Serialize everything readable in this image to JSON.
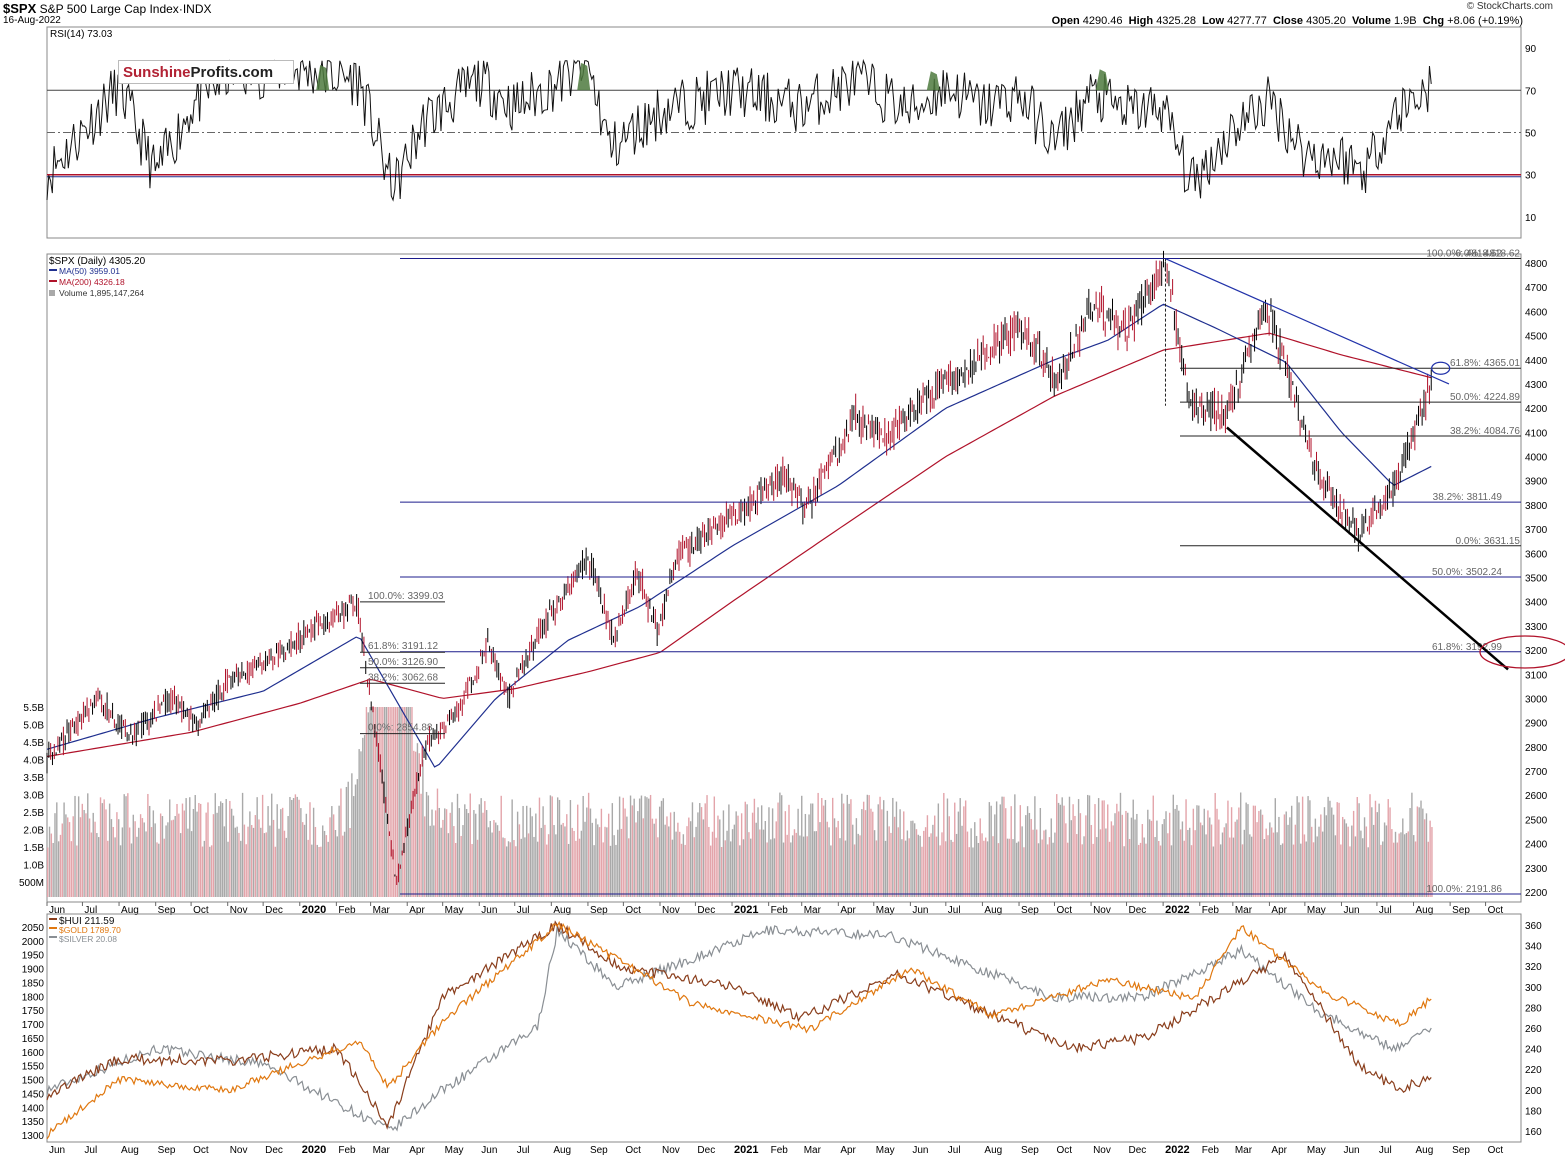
{
  "header": {
    "symbol": "$SPX",
    "name": "S&P 500 Large Cap Index",
    "exchange": "INDX",
    "date": "16-Aug-2022",
    "copyright": "© StockCharts.com",
    "open_label": "Open",
    "open": "4290.46",
    "high_label": "High",
    "high": "4325.28",
    "low_label": "Low",
    "low": "4277.77",
    "close_label": "Close",
    "close": "4305.20",
    "volume_label": "Volume",
    "volume": "1.9B",
    "chg_label": "Chg",
    "chg": "+8.06 (+0.19%)"
  },
  "logo": {
    "part1": "Sunshine",
    "part2": "Profits.com"
  },
  "colors": {
    "price": "#000000",
    "down_candle": "#b0122a",
    "ma50": "#1f2f8f",
    "ma200": "#b0122a",
    "volume_up": "#a9a9a9",
    "volume_down": "#e3a4aa",
    "fib_line": "#1c1c8c",
    "hui": "#8a3e1c",
    "gold": "#e07810",
    "silver": "#8a8f94",
    "rsi_fill": "#4d7a3e",
    "ellipse": "#b0122a"
  },
  "chart_data": [
    {
      "type": "line",
      "panel": "rsi",
      "legend": "RSI(14) 73.03",
      "ylim": [
        0,
        100
      ],
      "yticks": [
        10,
        30,
        50,
        70,
        90
      ],
      "reference_lines": [
        30,
        50,
        70
      ],
      "series": [
        {
          "name": "RSI(14)",
          "x": [
            "2019-06-01",
            "2019-08-01",
            "2019-09-01",
            "2019-10-01",
            "2019-11-01",
            "2020-01-01",
            "2020-02-20",
            "2020-03-20",
            "2020-04-15",
            "2020-06-01",
            "2020-07-01",
            "2020-09-01",
            "2020-09-20",
            "2020-11-01",
            "2021-01-01",
            "2021-03-01",
            "2021-04-15",
            "2021-06-01",
            "2021-07-01",
            "2021-08-01",
            "2021-09-01",
            "2021-10-01",
            "2021-11-01",
            "2021-12-01",
            "2022-01-01",
            "2022-01-25",
            "2022-03-01",
            "2022-04-01",
            "2022-05-01",
            "2022-06-01",
            "2022-06-20",
            "2022-07-15",
            "2022-08-16"
          ],
          "values": [
            30,
            72,
            30,
            62,
            78,
            80,
            75,
            22,
            55,
            75,
            62,
            82,
            42,
            60,
            70,
            62,
            75,
            60,
            72,
            62,
            68,
            45,
            68,
            60,
            62,
            25,
            52,
            65,
            40,
            38,
            32,
            58,
            73
          ]
        }
      ]
    },
    {
      "type": "line",
      "panel": "price",
      "title": "S&P 500 Large Cap Index",
      "ylim": [
        2200,
        4800
      ],
      "yticks": [
        2200,
        2300,
        2400,
        2500,
        2600,
        2700,
        2800,
        2900,
        3000,
        3100,
        3200,
        3300,
        3400,
        3500,
        3600,
        3700,
        3800,
        3900,
        4000,
        4100,
        4200,
        4300,
        4400,
        4500,
        4600,
        4700,
        4800
      ],
      "xticks": [
        "Jun",
        "Jul",
        "Aug",
        "Sep",
        "Oct",
        "Nov",
        "Dec",
        "2020",
        "Feb",
        "Mar",
        "Apr",
        "May",
        "Jun",
        "Jul",
        "Aug",
        "Sep",
        "Oct",
        "Nov",
        "Dec",
        "2021",
        "Feb",
        "Mar",
        "Apr",
        "May",
        "Jun",
        "Jul",
        "Aug",
        "Sep",
        "Oct",
        "Nov",
        "Dec",
        "2022",
        "Feb",
        "Mar",
        "Apr",
        "May",
        "Jun",
        "Jul",
        "Aug",
        "Sep",
        "Oct"
      ],
      "legend": [
        "$SPX (Daily) 4305.20",
        "MA(50) 3959.01",
        "MA(200) 4326.18",
        "Volume 1,895,147,264"
      ],
      "series": [
        {
          "name": "$SPX (Daily)",
          "x": [
            "2019-06-01",
            "2019-07-15",
            "2019-08-10",
            "2019-09-15",
            "2019-10-05",
            "2019-11-01",
            "2019-12-01",
            "2020-01-01",
            "2020-02-19",
            "2020-03-23",
            "2020-04-15",
            "2020-05-15",
            "2020-06-08",
            "2020-06-26",
            "2020-07-20",
            "2020-09-02",
            "2020-09-23",
            "2020-10-12",
            "2020-10-30",
            "2020-11-15",
            "2020-12-15",
            "2021-01-15",
            "2021-02-15",
            "2021-03-04",
            "2021-04-15",
            "2021-05-12",
            "2021-06-15",
            "2021-07-15",
            "2021-08-15",
            "2021-09-02",
            "2021-10-04",
            "2021-11-02",
            "2021-12-01",
            "2022-01-03",
            "2022-01-24",
            "2022-02-24",
            "2022-03-29",
            "2022-05-12",
            "2022-06-16",
            "2022-07-15",
            "2022-08-16"
          ],
          "values": [
            2750,
            3010,
            2840,
            3000,
            2890,
            3070,
            3150,
            3250,
            3393,
            2237,
            2800,
            2950,
            3230,
            3010,
            3260,
            3580,
            3240,
            3530,
            3270,
            3580,
            3700,
            3800,
            3930,
            3770,
            4170,
            4060,
            4250,
            4350,
            4470,
            4540,
            4300,
            4630,
            4510,
            4800,
            4220,
            4190,
            4630,
            3930,
            3670,
            3860,
            4305
          ]
        },
        {
          "name": "MA(50)",
          "x": [
            "2019-06-01",
            "2019-09-01",
            "2019-12-01",
            "2020-02-20",
            "2020-04-25",
            "2020-06-15",
            "2020-08-15",
            "2020-10-15",
            "2021-01-01",
            "2021-04-01",
            "2021-07-01",
            "2021-10-01",
            "2021-11-15",
            "2022-01-01",
            "2022-02-15",
            "2022-04-15",
            "2022-06-01",
            "2022-07-15",
            "2022-08-16"
          ],
          "values": [
            2790,
            2920,
            3030,
            3260,
            2710,
            3000,
            3240,
            3380,
            3630,
            3880,
            4200,
            4400,
            4480,
            4630,
            4530,
            4390,
            4100,
            3880,
            3959
          ]
        },
        {
          "name": "MA(200)",
          "x": [
            "2019-06-01",
            "2019-10-01",
            "2020-01-01",
            "2020-03-01",
            "2020-05-01",
            "2020-07-01",
            "2020-09-01",
            "2020-11-01",
            "2021-01-01",
            "2021-04-01",
            "2021-07-01",
            "2021-10-01",
            "2022-01-01",
            "2022-04-01",
            "2022-06-01",
            "2022-08-16"
          ],
          "values": [
            2760,
            2860,
            2980,
            3080,
            3000,
            3040,
            3110,
            3190,
            3400,
            3700,
            4000,
            4250,
            4440,
            4510,
            4420,
            4326
          ]
        }
      ],
      "volume": {
        "name": "Volume",
        "yticks": [
          "500M",
          "1.0B",
          "1.5B",
          "2.0B",
          "2.5B",
          "3.0B",
          "3.5B",
          "4.0B",
          "4.5B",
          "5.0B",
          "5.5B"
        ]
      },
      "fib_levels_2020": [
        {
          "label": "100.0%: 3399.03",
          "value": 3399.03
        },
        {
          "label": "61.8%: 3191.12",
          "value": 3191.12
        },
        {
          "label": "50.0%: 3126.90",
          "value": 3126.9
        },
        {
          "label": "38.2%: 3062.68",
          "value": 3062.68
        },
        {
          "label": "0.0%: 2854.88",
          "value": 2854.88
        }
      ],
      "fib_levels_long": [
        {
          "label": "100.0%: 4818.62",
          "value": 4818.62
        },
        {
          "label": "61.8%: 3192.99",
          "value": 3192.99
        },
        {
          "label": "50.0%: 3502.24",
          "value": 3502.24
        },
        {
          "label": "38.2%: 3811.49",
          "value": 3811.49
        },
        {
          "label": "100.0%: 2191.86",
          "value": 2191.86
        }
      ],
      "fib_levels_2022": [
        {
          "label": "0.0%: 4818.62",
          "value": 4818.62
        },
        {
          "label": "61.8%: 4365.01",
          "value": 4365.01
        },
        {
          "label": "50.0%: 4224.89",
          "value": 4224.89
        },
        {
          "label": "38.2%: 4084.76",
          "value": 4084.76
        },
        {
          "label": "0.0%: 3631.15",
          "value": 3631.15
        }
      ],
      "trend_lines": [
        {
          "name": "declining-resistance",
          "from": [
            "2022-01-03",
            4818
          ],
          "to": [
            "2022-08-31",
            4300
          ]
        },
        {
          "name": "declining-support",
          "from": [
            "2022-02-24",
            4120
          ],
          "to": [
            "2022-10-20",
            3120
          ]
        }
      ]
    },
    {
      "type": "line",
      "panel": "precious-metals",
      "legend": [
        "$HUI 211.59",
        "$GOLD 1789.70",
        "$SILVER 20.08"
      ],
      "y_left": [
        1300,
        1350,
        1400,
        1450,
        1500,
        1550,
        1600,
        1650,
        1700,
        1750,
        1800,
        1850,
        1900,
        1950,
        2000,
        2050
      ],
      "y_right": [
        160,
        180,
        200,
        220,
        240,
        260,
        280,
        300,
        320,
        340,
        360
      ],
      "series": [
        {
          "name": "$HUI",
          "axis": "right",
          "x": [
            "2019-06-01",
            "2019-08-01",
            "2019-11-01",
            "2020-02-01",
            "2020-03-16",
            "2020-05-01",
            "2020-08-05",
            "2020-10-01",
            "2021-01-01",
            "2021-03-01",
            "2021-05-20",
            "2021-08-15",
            "2021-10-15",
            "2021-12-15",
            "2022-04-15",
            "2022-06-15",
            "2022-07-20",
            "2022-08-16"
          ],
          "values": [
            195,
            230,
            228,
            240,
            165,
            290,
            360,
            318,
            300,
            270,
            312,
            270,
            240,
            250,
            330,
            225,
            200,
            212
          ]
        },
        {
          "name": "$GOLD",
          "axis": "left",
          "x": [
            "2019-06-01",
            "2019-08-01",
            "2019-11-01",
            "2020-02-20",
            "2020-03-16",
            "2020-05-01",
            "2020-08-06",
            "2020-11-30",
            "2021-03-08",
            "2021-06-01",
            "2021-08-10",
            "2021-11-15",
            "2022-01-28",
            "2022-03-08",
            "2022-05-15",
            "2022-07-20",
            "2022-08-16"
          ],
          "values": [
            1300,
            1500,
            1460,
            1640,
            1470,
            1710,
            2060,
            1770,
            1680,
            1900,
            1730,
            1860,
            1790,
            2050,
            1820,
            1700,
            1790
          ]
        },
        {
          "name": "$SILVER",
          "axis": "right",
          "x": [
            "2019-06-01",
            "2019-09-01",
            "2019-12-01",
            "2020-03-18",
            "2020-05-01",
            "2020-07-20",
            "2020-08-06",
            "2020-09-25",
            "2021-02-01",
            "2021-05-15",
            "2021-09-30",
            "2021-12-15",
            "2022-03-08",
            "2022-05-15",
            "2022-07-15",
            "2022-08-16"
          ],
          "values": [
            200,
            240,
            225,
            160,
            200,
            260,
            355,
            300,
            355,
            350,
            290,
            290,
            335,
            275,
            240,
            260
          ]
        }
      ]
    }
  ]
}
